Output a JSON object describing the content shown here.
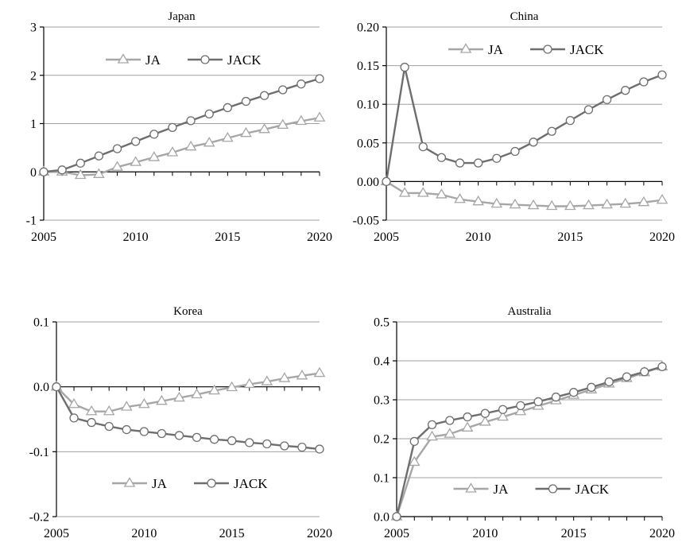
{
  "chart_data": [
    {
      "type": "line",
      "title": "Japan",
      "xlabel": "",
      "ylabel": "",
      "x": [
        2005,
        2006,
        2007,
        2008,
        2009,
        2010,
        2011,
        2012,
        2013,
        2014,
        2015,
        2016,
        2017,
        2018,
        2019,
        2020
      ],
      "xlim": [
        2005,
        2020
      ],
      "xticks": [
        2005,
        2010,
        2015,
        2020
      ],
      "ylim": [
        -1,
        3
      ],
      "yticks": [
        -1,
        0,
        1,
        2,
        3
      ],
      "ytick_labels": [
        "-1",
        "0",
        "1",
        "2",
        "3"
      ],
      "grid": "horizontal",
      "legend_position": "top-center",
      "series": [
        {
          "name": "JA",
          "marker": "triangle",
          "color": "#a6a6a6",
          "values": [
            0,
            0,
            -0.07,
            -0.05,
            0.1,
            0.2,
            0.3,
            0.4,
            0.52,
            0.6,
            0.7,
            0.8,
            0.88,
            0.97,
            1.05,
            1.12
          ]
        },
        {
          "name": "JACK",
          "marker": "circle",
          "color": "#6e6e6e",
          "values": [
            0,
            0.04,
            0.18,
            0.33,
            0.48,
            0.63,
            0.78,
            0.92,
            1.06,
            1.2,
            1.33,
            1.46,
            1.58,
            1.7,
            1.82,
            1.93
          ]
        }
      ]
    },
    {
      "type": "line",
      "title": "China",
      "xlabel": "",
      "ylabel": "",
      "x": [
        2005,
        2006,
        2007,
        2008,
        2009,
        2010,
        2011,
        2012,
        2013,
        2014,
        2015,
        2016,
        2017,
        2018,
        2019,
        2020
      ],
      "xlim": [
        2005,
        2020
      ],
      "xticks": [
        2005,
        2010,
        2015,
        2020
      ],
      "ylim": [
        -0.05,
        0.2
      ],
      "yticks": [
        -0.05,
        0,
        0.05,
        0.1,
        0.15,
        0.2
      ],
      "ytick_labels": [
        "-0.05",
        "0.00",
        "0.05",
        "0.10",
        "0.15",
        "0.20"
      ],
      "grid": "horizontal",
      "legend_position": "top-center",
      "series": [
        {
          "name": "JA",
          "marker": "triangle",
          "color": "#a6a6a6",
          "values": [
            0,
            -0.015,
            -0.015,
            -0.017,
            -0.023,
            -0.026,
            -0.029,
            -0.03,
            -0.031,
            -0.032,
            -0.032,
            -0.031,
            -0.03,
            -0.029,
            -0.027,
            -0.024
          ]
        },
        {
          "name": "JACK",
          "marker": "circle",
          "color": "#6e6e6e",
          "values": [
            0,
            0.148,
            0.045,
            0.031,
            0.024,
            0.024,
            0.03,
            0.039,
            0.051,
            0.065,
            0.079,
            0.093,
            0.106,
            0.118,
            0.129,
            0.138
          ]
        }
      ]
    },
    {
      "type": "line",
      "title": "Korea",
      "xlabel": "",
      "ylabel": "",
      "x": [
        2005,
        2006,
        2007,
        2008,
        2009,
        2010,
        2011,
        2012,
        2013,
        2014,
        2015,
        2016,
        2017,
        2018,
        2019,
        2020
      ],
      "xlim": [
        2005,
        2020
      ],
      "xticks": [
        2005,
        2010,
        2015,
        2020
      ],
      "ylim": [
        -0.2,
        0.1
      ],
      "yticks": [
        -0.2,
        -0.1,
        0,
        0.1
      ],
      "ytick_labels": [
        "-0.2",
        "-0.1",
        "0.0",
        "0.1"
      ],
      "grid": "horizontal",
      "legend_position": "bottom-center",
      "series": [
        {
          "name": "JA",
          "marker": "triangle",
          "color": "#a6a6a6",
          "values": [
            0,
            -0.027,
            -0.038,
            -0.038,
            -0.031,
            -0.027,
            -0.022,
            -0.017,
            -0.012,
            -0.006,
            -0.001,
            0.004,
            0.008,
            0.013,
            0.017,
            0.021
          ]
        },
        {
          "name": "JACK",
          "marker": "circle",
          "color": "#6e6e6e",
          "values": [
            0,
            -0.048,
            -0.055,
            -0.061,
            -0.066,
            -0.069,
            -0.072,
            -0.075,
            -0.078,
            -0.081,
            -0.083,
            -0.086,
            -0.088,
            -0.091,
            -0.093,
            -0.096
          ]
        }
      ]
    },
    {
      "type": "line",
      "title": "Australia",
      "xlabel": "",
      "ylabel": "",
      "x": [
        2005,
        2006,
        2007,
        2008,
        2009,
        2010,
        2011,
        2012,
        2013,
        2014,
        2015,
        2016,
        2017,
        2018,
        2019,
        2020
      ],
      "xlim": [
        2005,
        2020
      ],
      "xticks": [
        2005,
        2010,
        2015,
        2020
      ],
      "ylim": [
        0,
        0.5
      ],
      "yticks": [
        0,
        0.1,
        0.2,
        0.3,
        0.4,
        0.5
      ],
      "ytick_labels": [
        "0.0",
        "0.1",
        "0.2",
        "0.3",
        "0.4",
        "0.5"
      ],
      "grid": "horizontal",
      "legend_position": "bottom-center",
      "series": [
        {
          "name": "JA",
          "marker": "triangle",
          "color": "#a6a6a6",
          "values": [
            0,
            0.14,
            0.205,
            0.212,
            0.228,
            0.243,
            0.256,
            0.27,
            0.284,
            0.298,
            0.312,
            0.326,
            0.341,
            0.355,
            0.37,
            0.385
          ]
        },
        {
          "name": "JACK",
          "marker": "circle",
          "color": "#6e6e6e",
          "values": [
            0,
            0.193,
            0.236,
            0.247,
            0.256,
            0.265,
            0.275,
            0.285,
            0.295,
            0.307,
            0.319,
            0.332,
            0.346,
            0.359,
            0.372,
            0.385
          ]
        }
      ]
    }
  ]
}
